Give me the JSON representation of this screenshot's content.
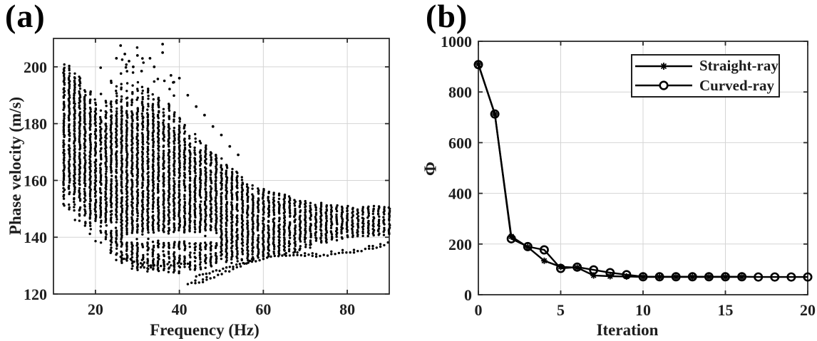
{
  "figure": {
    "background": "#ffffff",
    "text_color": "#1c1c1c",
    "grid_color": "#d4d4d4",
    "axis_color": "#2a2a2a",
    "data_color": "#000000"
  },
  "panels": [
    {
      "tag": "(a)"
    },
    {
      "tag": "(b)"
    }
  ],
  "chart_data": [
    {
      "panel": "a",
      "type": "scatter",
      "title": "",
      "xlabel": "Frequency (Hz)",
      "ylabel": "Phase velocity (m/s)",
      "xlim": [
        10,
        90
      ],
      "ylim": [
        120,
        210
      ],
      "xticks": [
        20,
        40,
        60,
        80
      ],
      "yticks": [
        120,
        140,
        160,
        180,
        200
      ],
      "grid": true,
      "column_spacing_hz": 1.25,
      "point_spacing_ms": 0.6,
      "envelope": {
        "freq": [
          12.5,
          15,
          18,
          20,
          22,
          24,
          26,
          28,
          30,
          32,
          34,
          36,
          38,
          40,
          42,
          44,
          46,
          48,
          50,
          52,
          54,
          56,
          58,
          60,
          62,
          65,
          70,
          75,
          80,
          85,
          90
        ],
        "vmax": [
          202,
          199,
          194,
          190,
          187,
          192,
          195,
          194,
          195,
          193,
          191,
          189,
          187,
          183,
          180,
          176,
          173,
          170,
          168,
          165,
          163,
          160,
          158,
          157,
          156,
          155,
          153,
          152,
          151,
          151,
          151
        ],
        "vmin": [
          150,
          146,
          141,
          138,
          135,
          133,
          131,
          129.5,
          128.5,
          128,
          128,
          128,
          127.5,
          127.5,
          128,
          128.5,
          129,
          130,
          130.5,
          131,
          131.5,
          132,
          132.5,
          133,
          133.5,
          134,
          136,
          138,
          140,
          140.5,
          141
        ]
      },
      "lower_branch": {
        "freq": [
          42,
          44,
          46,
          48,
          50,
          53,
          56,
          60,
          64,
          68,
          70,
          73,
          76,
          79,
          82,
          85,
          88,
          90
        ],
        "v": [
          123.5,
          124,
          124.5,
          125.5,
          127,
          129,
          131,
          132.5,
          133.5,
          134,
          133.5,
          133.5,
          134,
          134.5,
          135,
          136,
          137,
          138
        ]
      },
      "sub_branches": [
        {
          "f0": 44,
          "f1": 58,
          "v0": 126,
          "v1": 132
        },
        {
          "f0": 30,
          "f1": 42,
          "v0": 129,
          "v1": 131
        },
        {
          "f0": 26,
          "f1": 34,
          "v0": 133,
          "v1": 130
        }
      ],
      "outliers": [
        [
          26,
          207.5
        ],
        [
          36,
          208
        ],
        [
          25,
          203
        ],
        [
          27,
          204.5
        ],
        [
          28,
          202
        ],
        [
          29,
          200
        ],
        [
          30,
          204
        ],
        [
          31,
          198.5
        ],
        [
          33,
          203
        ],
        [
          34,
          200
        ],
        [
          36,
          205
        ],
        [
          38,
          197
        ],
        [
          40,
          196
        ],
        [
          42,
          190
        ],
        [
          44,
          186
        ],
        [
          46,
          183
        ],
        [
          48,
          179
        ],
        [
          50,
          176
        ],
        [
          52,
          172
        ],
        [
          54,
          169
        ]
      ]
    },
    {
      "panel": "b",
      "type": "line",
      "title": "",
      "xlabel": "Iteration",
      "ylabel": "Φ",
      "xlim": [
        0,
        20
      ],
      "ylim": [
        0,
        1000
      ],
      "xticks": [
        0,
        5,
        10,
        15,
        20
      ],
      "yticks": [
        0,
        200,
        400,
        600,
        800,
        1000
      ],
      "grid": true,
      "legend_position": "top-right",
      "series": [
        {
          "name": "Straight-ray",
          "marker": "asterisk",
          "x": [
            0,
            1,
            2,
            3,
            4,
            5,
            6,
            7,
            8,
            9,
            10,
            11,
            12,
            13,
            14,
            15,
            16
          ],
          "y": [
            910,
            713,
            230,
            188,
            134,
            110,
            107,
            76,
            73,
            72,
            70,
            70,
            70,
            70,
            70,
            70,
            70
          ]
        },
        {
          "name": "Curved-ray",
          "marker": "circle",
          "x": [
            0,
            1,
            2,
            3,
            4,
            5,
            6,
            7,
            8,
            9,
            10,
            11,
            12,
            13,
            14,
            15,
            16,
            17,
            18,
            19,
            20
          ],
          "y": [
            908,
            713,
            221,
            190,
            177,
            104,
            109,
            98,
            87,
            79,
            71,
            71,
            71,
            71,
            71,
            71,
            71,
            70,
            70,
            70,
            70
          ]
        }
      ]
    }
  ]
}
